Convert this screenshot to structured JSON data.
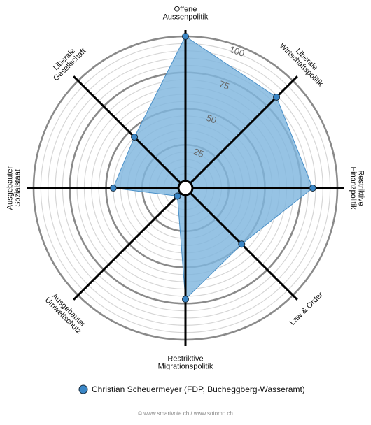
{
  "chart_data": {
    "type": "radar",
    "axes": [
      "Offene Aussenpolitik",
      "Liberale Wirtschaftspolitik",
      "Restriktive Finanzpolitik",
      "Law & Order",
      "Restriktive Migrationspolitik",
      "Ausgebauter Umweltschutz",
      "Ausgebauter Sozialstaat",
      "Liberale Gesellschaft"
    ],
    "axis_label_lines": [
      [
        "Offene",
        "Aussenpolitik"
      ],
      [
        "Liberale",
        "Wirtschaftspolitik"
      ],
      [
        "Restriktive",
        "Finanzpolitik"
      ],
      [
        "Law & Order"
      ],
      [
        "Restriktive",
        "Migrationspolitik"
      ],
      [
        "Ausgebauter",
        "Umweltschutz"
      ],
      [
        "Ausgebauter",
        "Sozialstaat"
      ],
      [
        "Liberale",
        "Gesellschaft"
      ]
    ],
    "range": [
      0,
      100
    ],
    "ring_ticks": [
      25,
      50,
      75,
      100
    ],
    "series": [
      {
        "name": "Christian Scheuermeyer (FDP, Bucheggberg-Wasseramt)",
        "values": [
          100,
          84,
          83,
          50,
          72,
          3,
          45,
          45
        ],
        "color": "#6aaad9"
      }
    ],
    "legend_position": "bottom"
  },
  "footer": {
    "credit": "© www.smartvote.ch / www.sotomo.ch"
  },
  "colors": {
    "fill": "#7fb6de",
    "stroke": "#4a90c8",
    "point": "#3a86c6",
    "axis": "#000000",
    "major_ring": "#8a8a8a",
    "minor_ring": "#d6d6d6"
  }
}
